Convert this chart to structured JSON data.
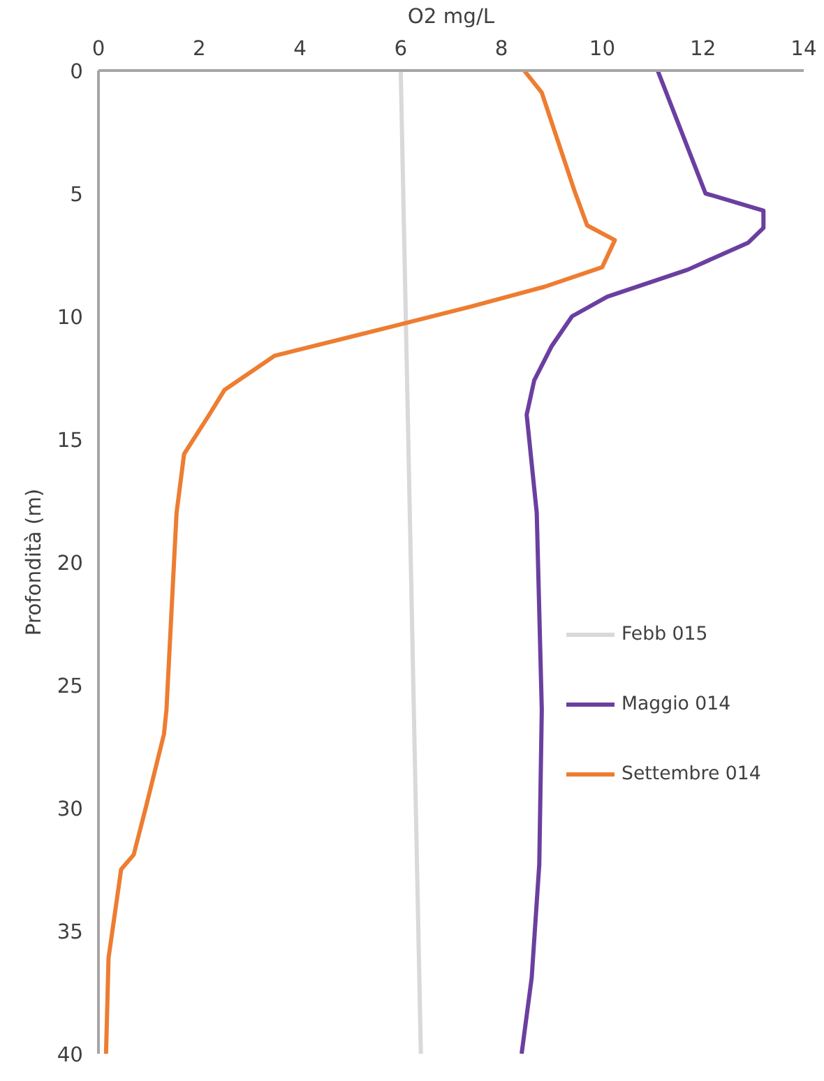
{
  "chart_data": {
    "type": "line",
    "xlabel": "O2 mg/L",
    "ylabel": "Profondità (m)",
    "xlim": [
      0,
      14
    ],
    "xticks": [
      0,
      2,
      4,
      6,
      8,
      10,
      12,
      14
    ],
    "ylim": [
      40,
      0
    ],
    "yticks": [
      0,
      5,
      10,
      15,
      20,
      25,
      30,
      35,
      40
    ],
    "grid": false,
    "legend": "right",
    "marker": "none",
    "line_style": "solid",
    "series": [
      {
        "name": "Febb 015",
        "color": "#d9d9d9",
        "x": [
          6.0,
          6.1,
          6.2,
          6.3,
          6.4
        ],
        "values": [
          0,
          10,
          20,
          30,
          40
        ]
      },
      {
        "name": "Maggio 014",
        "color": "#6b3fa0",
        "x": [
          11.1,
          12.05,
          13.2,
          13.2,
          12.9,
          11.7,
          10.1,
          9.4,
          9.0,
          8.65,
          8.5,
          8.7,
          8.8,
          8.75,
          8.6,
          8.4
        ],
        "values": [
          0,
          5,
          5.7,
          6.4,
          7,
          8.1,
          9.2,
          10,
          11.2,
          12.6,
          14,
          18,
          26,
          32.3,
          36.9,
          40
        ]
      },
      {
        "name": "Settembre 014",
        "color": "#ed7d31",
        "x": [
          8.45,
          8.8,
          9.45,
          9.7,
          10.25,
          10.0,
          8.85,
          7.4,
          5.85,
          3.5,
          2.5,
          2.2,
          1.7,
          1.55,
          1.35,
          1.3,
          0.95,
          0.7,
          0.45,
          0.2,
          0.15
        ],
        "values": [
          0,
          0.9,
          4.9,
          6.3,
          6.9,
          8.0,
          8.8,
          9.6,
          10.4,
          11.6,
          13,
          14,
          15.6,
          18,
          26,
          27,
          29.9,
          31.9,
          32.5,
          36.1,
          40
        ]
      }
    ]
  }
}
